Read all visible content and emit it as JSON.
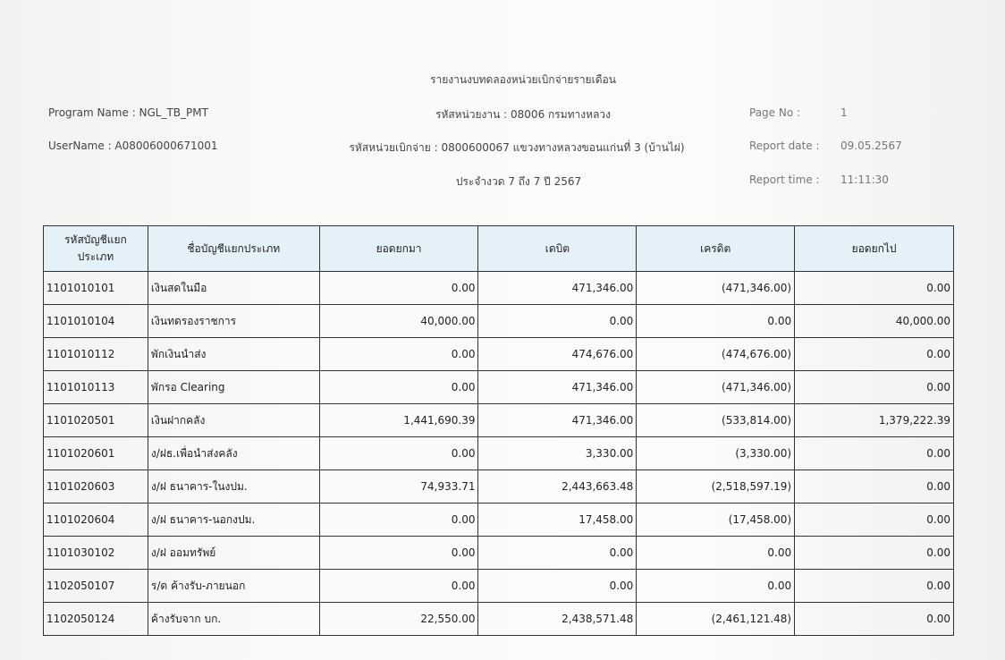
{
  "report": {
    "title": "รายงานงบทดลองหน่วยเบิกจ่ายรายเดือน",
    "program_name": "Program Name : NGL_TB_PMT",
    "username": "UserName : A08006000671001",
    "agency": "รหัสหน่วยงาน : 08006 กรมทางหลวง",
    "disbursing_unit": "รหัสหน่วยเบิกจ่าย : 0800600067 แขวงทางหลวงขอนแก่นที่ 3 (บ้านไผ่)",
    "period": "ประจำงวด 7 ถึง 7 ปี 2567",
    "page_no_label": "Page No :",
    "page_no": "1",
    "report_date_label": "Report date :",
    "report_date": "09.05.2567",
    "report_time_label": "Report time :",
    "report_time": "11:11:30"
  },
  "table": {
    "headers": [
      "รหัสบัญชีแยกประเภท",
      "ชื่อบัญชีแยกประเภท",
      "ยอดยกมา",
      "เดบิต",
      "เครดิต",
      "ยอดยกไป"
    ],
    "rows": [
      [
        "1101010101",
        "เงินสดในมือ",
        "0.00",
        "471,346.00",
        "(471,346.00)",
        "0.00"
      ],
      [
        "1101010104",
        "เงินทดรองราชการ",
        "40,000.00",
        "0.00",
        "0.00",
        "40,000.00"
      ],
      [
        "1101010112",
        "พักเงินนำส่ง",
        "0.00",
        "474,676.00",
        "(474,676.00)",
        "0.00"
      ],
      [
        "1101010113",
        "พักรอ Clearing",
        "0.00",
        "471,346.00",
        "(471,346.00)",
        "0.00"
      ],
      [
        "1101020501",
        "เงินฝากคลัง",
        "1,441,690.39",
        "471,346.00",
        "(533,814.00)",
        "1,379,222.39"
      ],
      [
        "1101020601",
        "ง/ฝธ.เพื่อนำส่งคลัง",
        "0.00",
        "3,330.00",
        "(3,330.00)",
        "0.00"
      ],
      [
        "1101020603",
        "ง/ฝ ธนาคาร-ในงปม.",
        "74,933.71",
        "2,443,663.48",
        "(2,518,597.19)",
        "0.00"
      ],
      [
        "1101020604",
        "ง/ฝ ธนาคาร-นอกงปม.",
        "0.00",
        "17,458.00",
        "(17,458.00)",
        "0.00"
      ],
      [
        "1101030102",
        "ง/ฝ ออมทรัพย์",
        "0.00",
        "0.00",
        "0.00",
        "0.00"
      ],
      [
        "1102050107",
        "ร/ด ค้างรับ-ภายนอก",
        "0.00",
        "0.00",
        "0.00",
        "0.00"
      ],
      [
        "1102050124",
        "ค้างรับจาก บก.",
        "22,550.00",
        "2,438,571.48",
        "(2,461,121.48)",
        "0.00"
      ]
    ]
  }
}
